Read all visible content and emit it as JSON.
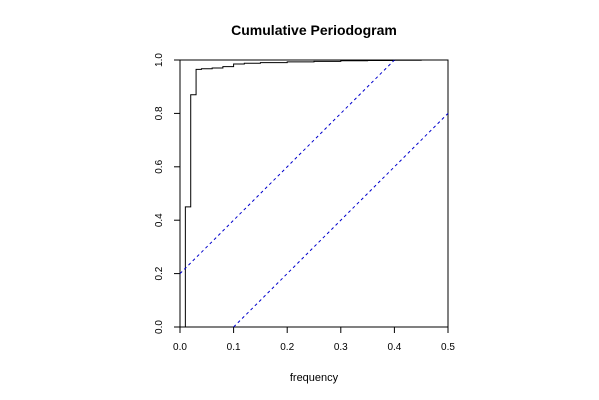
{
  "chart_data": {
    "type": "line",
    "title": "Cumulative Periodogram",
    "xlabel": "frequency",
    "ylabel": "",
    "xlim": [
      0,
      0.5
    ],
    "ylim": [
      0,
      1
    ],
    "x_ticks": [
      "0.0",
      "0.1",
      "0.2",
      "0.3",
      "0.4",
      "0.5"
    ],
    "y_ticks": [
      "0.0",
      "0.2",
      "0.4",
      "0.6",
      "0.8",
      "1.0"
    ],
    "grid": false,
    "series": [
      {
        "style": "step",
        "color": "#000000",
        "x": [
          0.01,
          0.02,
          0.03,
          0.04,
          0.06,
          0.08,
          0.1,
          0.12,
          0.15,
          0.2,
          0.25,
          0.3,
          0.35,
          0.4,
          0.45,
          0.5
        ],
        "y": [
          0.45,
          0.87,
          0.965,
          0.967,
          0.97,
          0.975,
          0.985,
          0.988,
          0.99,
          0.993,
          0.995,
          0.997,
          0.998,
          0.999,
          1.0,
          1.0
        ]
      },
      {
        "style": "dashed",
        "color": "#0000cc",
        "x": [
          0.0,
          0.4
        ],
        "y": [
          0.2,
          1.0
        ]
      },
      {
        "style": "dashed",
        "color": "#0000cc",
        "x": [
          0.1,
          0.5
        ],
        "y": [
          0.0,
          0.8
        ]
      }
    ]
  }
}
